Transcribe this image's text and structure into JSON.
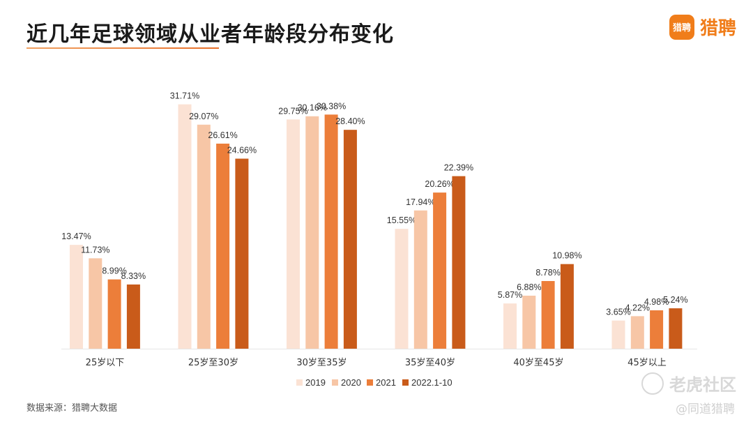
{
  "title": "近几年足球领域从业者年龄段分布变化",
  "logo": {
    "badge": "猎聘",
    "text": "猎聘"
  },
  "source": "数据来源：猎聘大数据",
  "watermark": {
    "line1": "老虎社区",
    "line2": "@同道猎聘"
  },
  "colors": [
    "#fbe2d4",
    "#f7c6a6",
    "#ec7e3a",
    "#c95b1a"
  ],
  "chart_data": {
    "type": "bar",
    "title": "近几年足球领域从业者年龄段分布变化",
    "xlabel": "",
    "ylabel": "",
    "ylim": [
      0,
      35
    ],
    "grid": false,
    "legend_position": "bottom",
    "categories": [
      "25岁以下",
      "25岁至30岁",
      "30岁至35岁",
      "35岁至40岁",
      "40岁至45岁",
      "45岁以上"
    ],
    "series": [
      {
        "name": "2019",
        "values": [
          13.47,
          31.71,
          29.75,
          15.55,
          5.87,
          3.65
        ],
        "labels": [
          "13.47%",
          "31.71%",
          "29.75%",
          "15.55%",
          "5.87%",
          "3.65%"
        ]
      },
      {
        "name": "2020",
        "values": [
          11.73,
          29.07,
          30.16,
          17.94,
          6.88,
          4.22
        ],
        "labels": [
          "11.73%",
          "29.07%",
          "30.16%",
          "17.94%",
          "6.88%",
          "4.22%"
        ]
      },
      {
        "name": "2021",
        "values": [
          8.99,
          26.61,
          30.38,
          20.26,
          8.78,
          4.98
        ],
        "labels": [
          "8.99%",
          "26.61%",
          "30.38%",
          "20.26%",
          "8.78%",
          "4.98%"
        ]
      },
      {
        "name": "2022.1-10",
        "values": [
          8.33,
          24.66,
          28.4,
          22.39,
          10.98,
          5.24
        ],
        "labels": [
          "8.33%",
          "24.66%",
          "28.40%",
          "22.39%",
          "10.98%",
          "5.24%"
        ]
      }
    ]
  }
}
